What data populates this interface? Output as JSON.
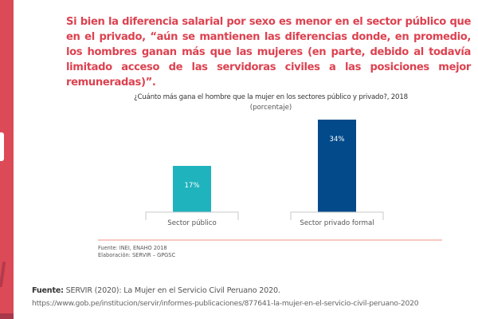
{
  "headline": "Si bien la diferencia salarial por sexo es menor en el sector público que en el privado, “aún se mantienen las diferencias donde, en promedio, los hombres ganan más que las mujeres (en parte, debido al todavía limitado acceso de las servidoras civiles a las posiciones mejor remuneradas)”.",
  "colors": {
    "sidebar": "#dc4a57",
    "headline": "#dc4250",
    "bar_public": "#1fb3bd",
    "bar_private": "#034a8a",
    "rule": "#f4a79d"
  },
  "chart_data": {
    "type": "bar",
    "title": "¿Cuánto más gana el hombre que la mujer en los sectores público y privado?, 2018",
    "subtitle": "(porcentaje)",
    "categories": [
      "Sector público",
      "Sector privado formal"
    ],
    "values": [
      17,
      34
    ],
    "value_labels": [
      "17%",
      "34%"
    ],
    "unit": "%",
    "xlabel": "",
    "ylabel": "",
    "ylim": [
      0,
      34
    ],
    "grid": false,
    "legend": "none"
  },
  "chart_notes": {
    "source": "Fuente: INEI, ENAHO 2018",
    "elaboration": "Elaboración: SERVIR – GPGSC"
  },
  "footer": {
    "source_label": "Fuente:",
    "source_text": " SERVIR (2020): La Mujer en el Servicio Civil Peruano 2020.",
    "url": "https://www.gob.pe/institucion/servir/informes-publicaciones/877641-la-mujer-en-el-servicio-civil-peruano-2020"
  }
}
